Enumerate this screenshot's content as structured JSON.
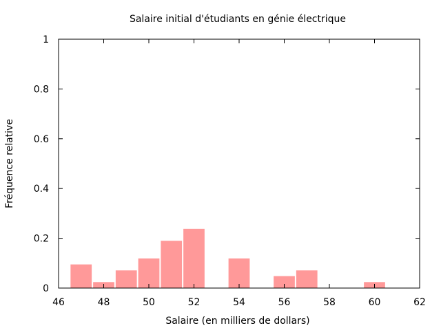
{
  "chart_data": {
    "type": "bar",
    "title": "Salaire initial d'étudiants en génie électrique",
    "xlabel": "Salaire (en milliers de dollars)",
    "ylabel": "Fréquence relative",
    "xlim": [
      46,
      62
    ],
    "ylim": [
      0,
      1
    ],
    "x_ticks": [
      46,
      48,
      50,
      52,
      54,
      56,
      58,
      60,
      62
    ],
    "y_ticks": [
      0,
      0.2,
      0.4,
      0.6,
      0.8,
      1
    ],
    "y_tick_labels": [
      "0",
      "0.2",
      "0.4",
      "0.6",
      "0.8",
      "1"
    ],
    "bar_width": 1,
    "bar_color": "#ff9999",
    "grid": false,
    "bars": [
      {
        "x": 47,
        "value": 0.095
      },
      {
        "x": 48,
        "value": 0.024
      },
      {
        "x": 49,
        "value": 0.071
      },
      {
        "x": 50,
        "value": 0.119
      },
      {
        "x": 51,
        "value": 0.19
      },
      {
        "x": 52,
        "value": 0.238
      },
      {
        "x": 53,
        "value": 0
      },
      {
        "x": 54,
        "value": 0.119
      },
      {
        "x": 55,
        "value": 0
      },
      {
        "x": 56,
        "value": 0.048
      },
      {
        "x": 57,
        "value": 0.071
      },
      {
        "x": 58,
        "value": 0
      },
      {
        "x": 59,
        "value": 0
      },
      {
        "x": 60,
        "value": 0.024
      }
    ]
  }
}
